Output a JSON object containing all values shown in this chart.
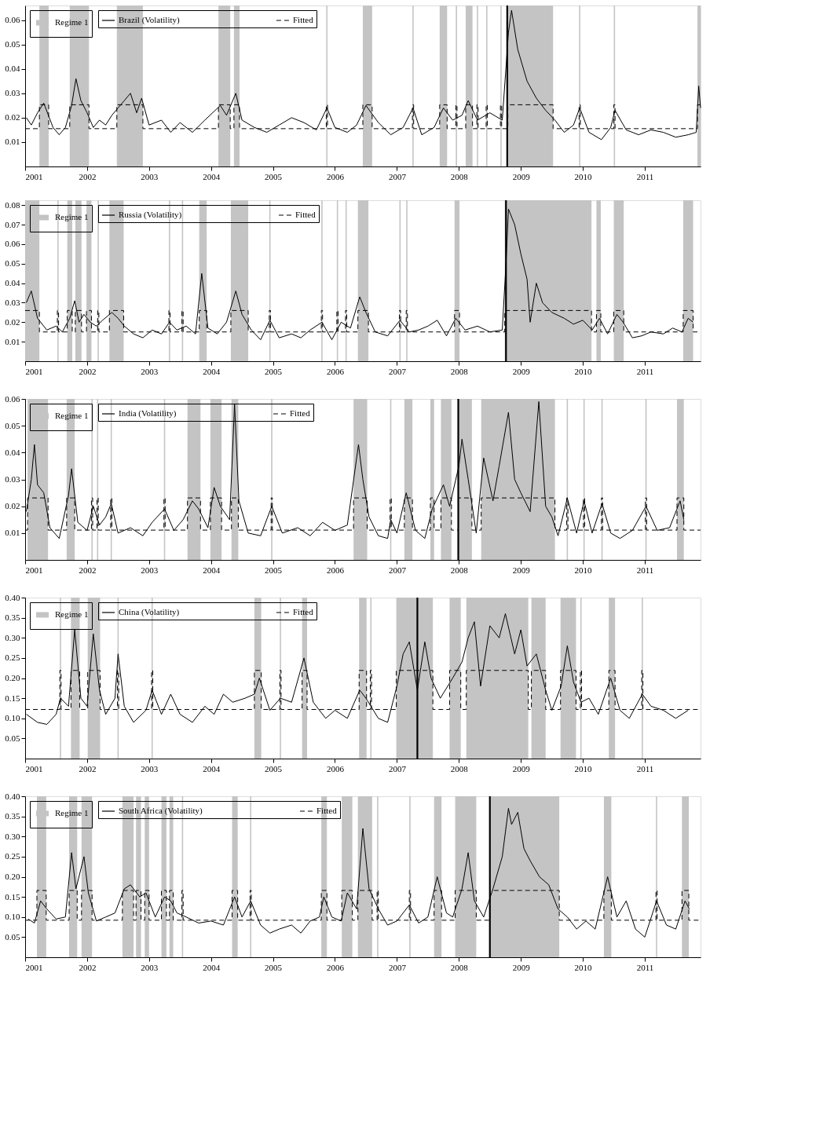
{
  "chart_data": [
    {
      "type": "line",
      "xlim": [
        2001,
        2011.9
      ],
      "xticks": [
        2001,
        2002,
        2003,
        2004,
        2005,
        2006,
        2007,
        2008,
        2009,
        2010,
        2011
      ],
      "ylim": [
        0,
        0.066
      ],
      "yticks": [
        0.01,
        0.02,
        0.03,
        0.04,
        0.05,
        0.06
      ],
      "legend": "top left",
      "series": [
        {
          "name": "Brazil (Volatility)",
          "type": "line",
          "color": "#000000",
          "x": [
            2001.02,
            2001.1,
            2001.2,
            2001.3,
            2001.45,
            2001.55,
            2001.65,
            2001.75,
            2001.82,
            2001.9,
            2002.0,
            2002.1,
            2002.2,
            2002.3,
            2002.4,
            2002.5,
            2002.6,
            2002.7,
            2002.8,
            2002.88,
            2003.0,
            2003.2,
            2003.35,
            2003.5,
            2003.7,
            2003.9,
            2004.15,
            2004.25,
            2004.4,
            2004.5,
            2004.7,
            2004.9,
            2005.1,
            2005.3,
            2005.5,
            2005.7,
            2005.87,
            2006.0,
            2006.2,
            2006.35,
            2006.5,
            2006.7,
            2006.9,
            2007.1,
            2007.26,
            2007.4,
            2007.6,
            2007.75,
            2007.9,
            2008.05,
            2008.15,
            2008.3,
            2008.5,
            2008.7,
            2008.8,
            2008.85,
            2008.95,
            2009.1,
            2009.25,
            2009.4,
            2009.55,
            2009.7,
            2009.85,
            2009.95,
            2010.1,
            2010.3,
            2010.45,
            2010.52,
            2010.7,
            2010.9,
            2011.1,
            2011.3,
            2011.5,
            2011.7,
            2011.83,
            2011.87,
            2011.9
          ],
          "values": [
            0.02,
            0.017,
            0.022,
            0.026,
            0.016,
            0.013,
            0.016,
            0.025,
            0.036,
            0.027,
            0.022,
            0.016,
            0.019,
            0.017,
            0.021,
            0.024,
            0.027,
            0.03,
            0.022,
            0.028,
            0.017,
            0.019,
            0.014,
            0.018,
            0.014,
            0.019,
            0.025,
            0.021,
            0.03,
            0.019,
            0.016,
            0.014,
            0.017,
            0.02,
            0.018,
            0.015,
            0.024,
            0.016,
            0.014,
            0.017,
            0.025,
            0.018,
            0.013,
            0.016,
            0.024,
            0.013,
            0.016,
            0.024,
            0.019,
            0.021,
            0.027,
            0.019,
            0.022,
            0.019,
            0.055,
            0.064,
            0.048,
            0.035,
            0.028,
            0.023,
            0.019,
            0.014,
            0.017,
            0.024,
            0.014,
            0.011,
            0.016,
            0.023,
            0.015,
            0.013,
            0.015,
            0.014,
            0.012,
            0.013,
            0.014,
            0.033,
            0.024
          ]
        },
        {
          "name": "Fitted",
          "type": "step",
          "line_style": "dashed",
          "color": "#000000",
          "x": [
            2001.0,
            2001.23,
            2001.38,
            2001.72,
            2002.03,
            2002.48,
            2002.9,
            2004.12,
            2004.31,
            2004.37,
            2004.46,
            2005.86,
            2005.88,
            2006.45,
            2006.6,
            2007.25,
            2007.27,
            2007.69,
            2007.81,
            2007.95,
            2007.97,
            2008.11,
            2008.22,
            2008.29,
            2008.31,
            2008.44,
            2008.46,
            2008.67,
            2008.69,
            2008.79,
            2009.52,
            2009.94,
            2009.96,
            2010.5,
            2010.52,
            2011.85,
            2011.9
          ],
          "values": [
            0.0155,
            0.0253,
            0.0155,
            0.0253,
            0.0155,
            0.0253,
            0.0155,
            0.0253,
            0.0155,
            0.0253,
            0.0155,
            0.0253,
            0.0155,
            0.0253,
            0.0155,
            0.0253,
            0.0155,
            0.0253,
            0.0155,
            0.0253,
            0.0155,
            0.0253,
            0.0155,
            0.0253,
            0.0155,
            0.0253,
            0.0155,
            0.0253,
            0.0155,
            0.0253,
            0.0155,
            0.0253,
            0.0155,
            0.0253,
            0.0155,
            0.0253,
            0.0253
          ]
        }
      ],
      "ref_lines": [
        {
          "axis": "x",
          "value": 2008.78,
          "color": "#000000"
        }
      ],
      "bands": [
        {
          "axis": "x",
          "from": 2001.23,
          "to": 2001.38,
          "label": "Regime 1",
          "color": "#c4c4c4"
        },
        {
          "axis": "x",
          "from": 2001.72,
          "to": 2002.03
        },
        {
          "axis": "x",
          "from": 2002.48,
          "to": 2002.9
        },
        {
          "axis": "x",
          "from": 2004.12,
          "to": 2004.31
        },
        {
          "axis": "x",
          "from": 2004.37,
          "to": 2004.46
        },
        {
          "axis": "x",
          "from": 2005.86,
          "to": 2005.88
        },
        {
          "axis": "x",
          "from": 2006.45,
          "to": 2006.6
        },
        {
          "axis": "x",
          "from": 2007.25,
          "to": 2007.27
        },
        {
          "axis": "x",
          "from": 2007.69,
          "to": 2007.81
        },
        {
          "axis": "x",
          "from": 2007.95,
          "to": 2007.97
        },
        {
          "axis": "x",
          "from": 2008.11,
          "to": 2008.22
        },
        {
          "axis": "x",
          "from": 2008.29,
          "to": 2008.31
        },
        {
          "axis": "x",
          "from": 2008.44,
          "to": 2008.46
        },
        {
          "axis": "x",
          "from": 2008.67,
          "to": 2008.69
        },
        {
          "axis": "x",
          "from": 2008.79,
          "to": 2009.52
        },
        {
          "axis": "x",
          "from": 2009.94,
          "to": 2009.96
        },
        {
          "axis": "x",
          "from": 2010.5,
          "to": 2010.52
        },
        {
          "axis": "x",
          "from": 2011.85,
          "to": 2011.9
        }
      ]
    },
    {
      "type": "line",
      "xlim": [
        2001,
        2011.9
      ],
      "xticks": [
        2001,
        2002,
        2003,
        2004,
        2005,
        2006,
        2007,
        2008,
        2009,
        2010,
        2011
      ],
      "ylim": [
        0,
        0.0825
      ],
      "yticks": [
        0.01,
        0.02,
        0.03,
        0.04,
        0.05,
        0.06,
        0.07,
        0.08
      ],
      "legend": "top left",
      "series": [
        {
          "name": "Russia (Volatility)",
          "type": "line",
          "color": "#000000",
          "x": [
            2001.02,
            2001.1,
            2001.2,
            2001.35,
            2001.5,
            2001.6,
            2001.72,
            2001.8,
            2001.87,
            2001.95,
            2002.05,
            2002.15,
            2002.25,
            2002.4,
            2002.5,
            2002.6,
            2002.75,
            2002.9,
            2003.05,
            2003.2,
            2003.33,
            2003.45,
            2003.6,
            2003.75,
            2003.85,
            2003.95,
            2004.1,
            2004.25,
            2004.4,
            2004.5,
            2004.65,
            2004.8,
            2004.95,
            2005.1,
            2005.3,
            2005.45,
            2005.6,
            2005.79,
            2005.95,
            2006.1,
            2006.25,
            2006.4,
            2006.5,
            2006.65,
            2006.85,
            2007.05,
            2007.2,
            2007.35,
            2007.5,
            2007.65,
            2007.8,
            2007.95,
            2008.1,
            2008.3,
            2008.5,
            2008.7,
            2008.76,
            2008.8,
            2008.9,
            2009.0,
            2009.1,
            2009.15,
            2009.25,
            2009.35,
            2009.5,
            2009.7,
            2009.85,
            2010.0,
            2010.15,
            2010.27,
            2010.4,
            2010.55,
            2010.65,
            2010.8,
            2010.95,
            2011.1,
            2011.3,
            2011.45,
            2011.6,
            2011.7,
            2011.78
          ],
          "values": [
            0.03,
            0.036,
            0.022,
            0.016,
            0.018,
            0.015,
            0.022,
            0.031,
            0.02,
            0.024,
            0.02,
            0.018,
            0.021,
            0.025,
            0.022,
            0.018,
            0.014,
            0.012,
            0.016,
            0.014,
            0.02,
            0.016,
            0.018,
            0.014,
            0.045,
            0.017,
            0.014,
            0.02,
            0.036,
            0.024,
            0.016,
            0.011,
            0.021,
            0.012,
            0.014,
            0.012,
            0.016,
            0.02,
            0.011,
            0.02,
            0.017,
            0.033,
            0.025,
            0.015,
            0.013,
            0.021,
            0.015,
            0.016,
            0.018,
            0.021,
            0.013,
            0.022,
            0.016,
            0.018,
            0.015,
            0.016,
            0.05,
            0.078,
            0.07,
            0.055,
            0.042,
            0.02,
            0.04,
            0.03,
            0.025,
            0.022,
            0.019,
            0.021,
            0.016,
            0.022,
            0.014,
            0.024,
            0.02,
            0.012,
            0.013,
            0.015,
            0.014,
            0.017,
            0.015,
            0.022,
            0.02
          ]
        },
        {
          "name": "Fitted",
          "type": "step",
          "line_style": "dashed",
          "color": "#000000",
          "x": [
            2001.0,
            2001.23,
            2001.52,
            2001.54,
            2001.68,
            2001.76,
            2001.81,
            2001.91,
            2001.99,
            2002.07,
            2002.17,
            2002.19,
            2002.36,
            2002.59,
            2003.32,
            2003.34,
            2003.53,
            2003.55,
            2003.81,
            2003.93,
            2004.32,
            2004.6,
            2004.94,
            2004.96,
            2005.78,
            2005.8,
            2006.03,
            2006.05,
            2006.17,
            2006.19,
            2006.37,
            2006.54,
            2007.04,
            2007.06,
            2007.15,
            2007.17,
            2007.93,
            2008.01,
            2008.74,
            2010.14,
            2010.22,
            2010.29,
            2010.5,
            2010.66,
            2011.62,
            2011.78,
            2011.9
          ],
          "values": [
            0.026,
            0.015,
            0.026,
            0.015,
            0.026,
            0.015,
            0.026,
            0.015,
            0.026,
            0.015,
            0.026,
            0.015,
            0.026,
            0.015,
            0.026,
            0.015,
            0.026,
            0.015,
            0.026,
            0.015,
            0.026,
            0.015,
            0.026,
            0.015,
            0.026,
            0.015,
            0.026,
            0.015,
            0.026,
            0.015,
            0.026,
            0.015,
            0.026,
            0.015,
            0.026,
            0.015,
            0.026,
            0.015,
            0.026,
            0.015,
            0.026,
            0.015,
            0.026,
            0.015,
            0.026,
            0.015,
            0.015
          ]
        }
      ],
      "ref_lines": [
        {
          "axis": "x",
          "value": 2008.76,
          "color": "#000000"
        }
      ],
      "bands": [
        {
          "axis": "x",
          "from": 2001.0,
          "to": 2001.23,
          "label": "Regime 1",
          "color": "#c4c4c4"
        },
        {
          "axis": "x",
          "from": 2001.52,
          "to": 2001.54
        },
        {
          "axis": "x",
          "from": 2001.68,
          "to": 2001.76
        },
        {
          "axis": "x",
          "from": 2001.81,
          "to": 2001.91
        },
        {
          "axis": "x",
          "from": 2001.99,
          "to": 2002.07
        },
        {
          "axis": "x",
          "from": 2002.17,
          "to": 2002.19
        },
        {
          "axis": "x",
          "from": 2002.36,
          "to": 2002.59
        },
        {
          "axis": "x",
          "from": 2003.32,
          "to": 2003.34
        },
        {
          "axis": "x",
          "from": 2003.53,
          "to": 2003.55
        },
        {
          "axis": "x",
          "from": 2003.81,
          "to": 2003.93
        },
        {
          "axis": "x",
          "from": 2004.32,
          "to": 2004.6
        },
        {
          "axis": "x",
          "from": 2004.94,
          "to": 2004.96
        },
        {
          "axis": "x",
          "from": 2005.78,
          "to": 2005.8
        },
        {
          "axis": "x",
          "from": 2006.03,
          "to": 2006.05
        },
        {
          "axis": "x",
          "from": 2006.17,
          "to": 2006.19
        },
        {
          "axis": "x",
          "from": 2006.37,
          "to": 2006.54
        },
        {
          "axis": "x",
          "from": 2007.04,
          "to": 2007.06
        },
        {
          "axis": "x",
          "from": 2007.15,
          "to": 2007.17
        },
        {
          "axis": "x",
          "from": 2007.93,
          "to": 2008.01
        },
        {
          "axis": "x",
          "from": 2008.74,
          "to": 2010.14
        },
        {
          "axis": "x",
          "from": 2010.22,
          "to": 2010.29
        },
        {
          "axis": "x",
          "from": 2010.5,
          "to": 2010.66
        },
        {
          "axis": "x",
          "from": 2011.62,
          "to": 2011.78
        }
      ]
    },
    {
      "type": "line",
      "xlim": [
        2001,
        2011.9
      ],
      "xticks": [
        2001,
        2002,
        2003,
        2004,
        2005,
        2006,
        2007,
        2008,
        2009,
        2010,
        2011
      ],
      "ylim": [
        0,
        0.06
      ],
      "yticks": [
        0.01,
        0.02,
        0.03,
        0.04,
        0.05,
        0.06
      ],
      "legend": "top left",
      "series": [
        {
          "name": "India (Volatility)",
          "type": "line",
          "color": "#000000",
          "x": [
            2001.02,
            2001.1,
            2001.15,
            2001.2,
            2001.3,
            2001.4,
            2001.55,
            2001.7,
            2001.75,
            2001.85,
            2002.0,
            2002.1,
            2002.2,
            2002.3,
            2002.39,
            2002.5,
            2002.7,
            2002.9,
            2003.05,
            2003.25,
            2003.4,
            2003.55,
            2003.7,
            2003.8,
            2003.95,
            2004.05,
            2004.15,
            2004.3,
            2004.38,
            2004.45,
            2004.6,
            2004.8,
            2004.98,
            2005.15,
            2005.4,
            2005.6,
            2005.8,
            2006.0,
            2006.2,
            2006.38,
            2006.45,
            2006.55,
            2006.7,
            2006.85,
            2006.9,
            2007.0,
            2007.15,
            2007.3,
            2007.45,
            2007.57,
            2007.75,
            2007.85,
            2008.0,
            2008.05,
            2008.15,
            2008.28,
            2008.4,
            2008.55,
            2008.65,
            2008.8,
            2008.9,
            2009.0,
            2009.15,
            2009.29,
            2009.4,
            2009.5,
            2009.6,
            2009.75,
            2009.9,
            2010.02,
            2010.15,
            2010.31,
            2010.45,
            2010.6,
            2010.8,
            2011.02,
            2011.2,
            2011.4,
            2011.57,
            2011.63
          ],
          "values": [
            0.018,
            0.03,
            0.043,
            0.028,
            0.025,
            0.012,
            0.008,
            0.024,
            0.034,
            0.014,
            0.011,
            0.02,
            0.013,
            0.016,
            0.021,
            0.01,
            0.012,
            0.009,
            0.014,
            0.019,
            0.011,
            0.015,
            0.022,
            0.019,
            0.012,
            0.027,
            0.02,
            0.015,
            0.058,
            0.022,
            0.01,
            0.009,
            0.02,
            0.01,
            0.012,
            0.009,
            0.014,
            0.011,
            0.013,
            0.043,
            0.03,
            0.016,
            0.009,
            0.008,
            0.015,
            0.01,
            0.025,
            0.011,
            0.008,
            0.019,
            0.028,
            0.02,
            0.035,
            0.045,
            0.03,
            0.01,
            0.038,
            0.022,
            0.035,
            0.055,
            0.03,
            0.025,
            0.018,
            0.059,
            0.02,
            0.016,
            0.009,
            0.023,
            0.01,
            0.022,
            0.01,
            0.021,
            0.01,
            0.008,
            0.011,
            0.02,
            0.011,
            0.012,
            0.022,
            0.015
          ]
        },
        {
          "name": "Fitted",
          "type": "step",
          "line_style": "dashed",
          "color": "#000000",
          "x": [
            2001.0,
            2001.04,
            2001.37,
            2001.67,
            2001.8,
            2002.07,
            2002.09,
            2002.16,
            2002.18,
            2002.38,
            2002.4,
            2003.24,
            2003.26,
            2003.62,
            2003.83,
            2003.99,
            2004.17,
            2004.33,
            2004.44,
            2004.97,
            2004.99,
            2006.3,
            2006.52,
            2006.89,
            2006.91,
            2007.12,
            2007.25,
            2007.54,
            2007.6,
            2007.71,
            2007.88,
            2007.99,
            2008.21,
            2008.36,
            2009.55,
            2009.74,
            2009.76,
            2010.01,
            2010.03,
            2010.3,
            2010.32,
            2011.01,
            2011.03,
            2011.52,
            2011.63,
            2011.9
          ],
          "values": [
            0.0111,
            0.0231,
            0.0111,
            0.0231,
            0.0111,
            0.0231,
            0.0111,
            0.0231,
            0.0111,
            0.0231,
            0.0111,
            0.0231,
            0.0111,
            0.0231,
            0.0111,
            0.0231,
            0.0111,
            0.0231,
            0.0111,
            0.0231,
            0.0111,
            0.0231,
            0.0111,
            0.0231,
            0.0111,
            0.0231,
            0.0111,
            0.0231,
            0.0111,
            0.0231,
            0.0111,
            0.0231,
            0.0111,
            0.0231,
            0.0111,
            0.0231,
            0.0111,
            0.0231,
            0.0111,
            0.0231,
            0.0111,
            0.0231,
            0.0111,
            0.0231,
            0.0111,
            0.0111
          ]
        }
      ],
      "ref_lines": [
        {
          "axis": "x",
          "value": 2007.99,
          "color": "#000000"
        }
      ],
      "bands": [
        {
          "axis": "x",
          "from": 2001.04,
          "to": 2001.37,
          "label": "Regime 1",
          "color": "#c4c4c4"
        },
        {
          "axis": "x",
          "from": 2001.67,
          "to": 2001.8
        },
        {
          "axis": "x",
          "from": 2002.07,
          "to": 2002.09
        },
        {
          "axis": "x",
          "from": 2002.16,
          "to": 2002.18
        },
        {
          "axis": "x",
          "from": 2002.38,
          "to": 2002.4
        },
        {
          "axis": "x",
          "from": 2003.24,
          "to": 2003.26
        },
        {
          "axis": "x",
          "from": 2003.62,
          "to": 2003.83
        },
        {
          "axis": "x",
          "from": 2003.99,
          "to": 2004.17
        },
        {
          "axis": "x",
          "from": 2004.33,
          "to": 2004.44
        },
        {
          "axis": "x",
          "from": 2004.97,
          "to": 2004.99
        },
        {
          "axis": "x",
          "from": 2006.3,
          "to": 2006.52
        },
        {
          "axis": "x",
          "from": 2006.89,
          "to": 2006.91
        },
        {
          "axis": "x",
          "from": 2007.12,
          "to": 2007.25
        },
        {
          "axis": "x",
          "from": 2007.54,
          "to": 2007.6
        },
        {
          "axis": "x",
          "from": 2007.71,
          "to": 2007.88
        },
        {
          "axis": "x",
          "from": 2007.99,
          "to": 2008.21
        },
        {
          "axis": "x",
          "from": 2008.36,
          "to": 2009.55
        },
        {
          "axis": "x",
          "from": 2009.74,
          "to": 2009.76
        },
        {
          "axis": "x",
          "from": 2010.01,
          "to": 2010.03
        },
        {
          "axis": "x",
          "from": 2010.3,
          "to": 2010.32
        },
        {
          "axis": "x",
          "from": 2011.01,
          "to": 2011.03
        },
        {
          "axis": "x",
          "from": 2011.52,
          "to": 2011.63
        }
      ]
    },
    {
      "type": "line",
      "xlim": [
        2001,
        2011.9
      ],
      "xticks": [
        2001,
        2002,
        2003,
        2004,
        2005,
        2006,
        2007,
        2008,
        2009,
        2010,
        2011
      ],
      "ylim": [
        0,
        0.4
      ],
      "yticks": [
        0.05,
        {
          "value": 0.1,
          "label": "0.10"
        },
        0.15,
        {
          "value": 0.2,
          "label": "0.20"
        },
        0.25,
        {
          "value": 0.3,
          "label": "0.30"
        },
        0.35,
        {
          "value": 0.4,
          "label": "0.40"
        }
      ],
      "legend": "top left",
      "series": [
        {
          "name": "China (Volatility)",
          "type": "line",
          "color": "#000000",
          "x": [
            2001.02,
            2001.2,
            2001.35,
            2001.5,
            2001.57,
            2001.7,
            2001.8,
            2001.9,
            2002.0,
            2002.1,
            2002.2,
            2002.3,
            2002.45,
            2002.5,
            2002.6,
            2002.75,
            2002.95,
            2003.05,
            2003.2,
            2003.35,
            2003.5,
            2003.7,
            2003.9,
            2004.05,
            2004.2,
            2004.35,
            2004.55,
            2004.7,
            2004.78,
            2004.95,
            2005.12,
            2005.3,
            2005.5,
            2005.65,
            2005.85,
            2006.0,
            2006.2,
            2006.4,
            2006.5,
            2006.7,
            2006.85,
            2007.0,
            2007.1,
            2007.2,
            2007.33,
            2007.45,
            2007.55,
            2007.7,
            2007.9,
            2008.05,
            2008.15,
            2008.25,
            2008.35,
            2008.5,
            2008.65,
            2008.75,
            2008.9,
            2009.0,
            2009.1,
            2009.25,
            2009.4,
            2009.5,
            2009.65,
            2009.75,
            2009.85,
            2009.97,
            2010.1,
            2010.25,
            2010.45,
            2010.6,
            2010.75,
            2010.96,
            2011.1,
            2011.3,
            2011.5,
            2011.7
          ],
          "values": [
            0.11,
            0.09,
            0.085,
            0.11,
            0.15,
            0.13,
            0.32,
            0.15,
            0.13,
            0.31,
            0.17,
            0.11,
            0.15,
            0.26,
            0.13,
            0.09,
            0.12,
            0.17,
            0.11,
            0.16,
            0.11,
            0.09,
            0.13,
            0.11,
            0.16,
            0.14,
            0.15,
            0.16,
            0.2,
            0.12,
            0.15,
            0.14,
            0.25,
            0.14,
            0.1,
            0.12,
            0.1,
            0.17,
            0.15,
            0.1,
            0.09,
            0.18,
            0.26,
            0.29,
            0.17,
            0.29,
            0.2,
            0.15,
            0.2,
            0.24,
            0.3,
            0.34,
            0.18,
            0.33,
            0.3,
            0.36,
            0.26,
            0.32,
            0.23,
            0.26,
            0.17,
            0.12,
            0.18,
            0.28,
            0.19,
            0.14,
            0.15,
            0.11,
            0.2,
            0.12,
            0.1,
            0.16,
            0.13,
            0.12,
            0.1,
            0.12
          ]
        },
        {
          "name": "Fitted",
          "type": "step",
          "line_style": "dashed",
          "color": "#000000",
          "x": [
            2001.0,
            2001.56,
            2001.58,
            2001.74,
            2001.88,
            2002.01,
            2002.21,
            2002.49,
            2002.51,
            2003.04,
            2003.06,
            2004.7,
            2004.81,
            2005.11,
            2005.13,
            2005.47,
            2005.55,
            2006.39,
            2006.51,
            2006.57,
            2006.59,
            2006.99,
            2007.58,
            2007.85,
            2008.03,
            2008.12,
            2009.12,
            2009.17,
            2009.4,
            2009.64,
            2009.89,
            2009.96,
            2009.98,
            2010.42,
            2010.52,
            2010.95,
            2010.97,
            2011.9
          ],
          "values": [
            0.122,
            0.219,
            0.122,
            0.219,
            0.122,
            0.219,
            0.122,
            0.219,
            0.122,
            0.219,
            0.122,
            0.219,
            0.122,
            0.219,
            0.122,
            0.219,
            0.122,
            0.219,
            0.122,
            0.219,
            0.122,
            0.219,
            0.122,
            0.219,
            0.122,
            0.219,
            0.122,
            0.219,
            0.122,
            0.219,
            0.122,
            0.219,
            0.122,
            0.219,
            0.122,
            0.219,
            0.122,
            0.122
          ]
        }
      ],
      "ref_lines": [
        {
          "axis": "x",
          "value": 2007.33,
          "color": "#000000"
        }
      ],
      "bands": [
        {
          "axis": "x",
          "from": 2001.56,
          "to": 2001.58,
          "label": "Regime 1",
          "color": "#c4c4c4"
        },
        {
          "axis": "x",
          "from": 2001.74,
          "to": 2001.88
        },
        {
          "axis": "x",
          "from": 2002.01,
          "to": 2002.21
        },
        {
          "axis": "x",
          "from": 2002.49,
          "to": 2002.51
        },
        {
          "axis": "x",
          "from": 2003.04,
          "to": 2003.06
        },
        {
          "axis": "x",
          "from": 2004.7,
          "to": 2004.81
        },
        {
          "axis": "x",
          "from": 2005.11,
          "to": 2005.13
        },
        {
          "axis": "x",
          "from": 2005.47,
          "to": 2005.55
        },
        {
          "axis": "x",
          "from": 2006.39,
          "to": 2006.51
        },
        {
          "axis": "x",
          "from": 2006.57,
          "to": 2006.59
        },
        {
          "axis": "x",
          "from": 2006.99,
          "to": 2007.58
        },
        {
          "axis": "x",
          "from": 2007.85,
          "to": 2008.03
        },
        {
          "axis": "x",
          "from": 2008.12,
          "to": 2009.12
        },
        {
          "axis": "x",
          "from": 2009.17,
          "to": 2009.4
        },
        {
          "axis": "x",
          "from": 2009.64,
          "to": 2009.89
        },
        {
          "axis": "x",
          "from": 2009.96,
          "to": 2009.98
        },
        {
          "axis": "x",
          "from": 2010.42,
          "to": 2010.52
        },
        {
          "axis": "x",
          "from": 2010.95,
          "to": 2010.97
        }
      ]
    },
    {
      "type": "line",
      "xlim": [
        2001,
        2011.9
      ],
      "xticks": [
        2001,
        2002,
        2003,
        2004,
        2005,
        2006,
        2007,
        2008,
        2009,
        2010,
        2011
      ],
      "ylim": [
        0,
        0.4
      ],
      "yticks": [
        0.05,
        {
          "value": 0.1,
          "label": "0.10"
        },
        0.15,
        {
          "value": 0.2,
          "label": "0.20"
        },
        0.25,
        {
          "value": 0.3,
          "label": "0.30"
        },
        0.35,
        {
          "value": 0.4,
          "label": "0.40"
        }
      ],
      "legend": "top left",
      "series": [
        {
          "name": "South Africa (Volatility)",
          "type": "line",
          "color": "#000000",
          "x": [
            2001.05,
            2001.15,
            2001.25,
            2001.35,
            2001.5,
            2001.65,
            2001.75,
            2001.82,
            2001.95,
            2002.02,
            2002.15,
            2002.3,
            2002.45,
            2002.6,
            2002.7,
            2002.85,
            2002.95,
            2003.1,
            2003.25,
            2003.35,
            2003.45,
            2003.6,
            2003.8,
            2004.0,
            2004.2,
            2004.38,
            2004.5,
            2004.64,
            2004.8,
            2004.95,
            2005.1,
            2005.3,
            2005.45,
            2005.6,
            2005.75,
            2005.82,
            2005.95,
            2006.1,
            2006.2,
            2006.35,
            2006.45,
            2006.55,
            2006.7,
            2006.85,
            2007.0,
            2007.2,
            2007.35,
            2007.5,
            2007.65,
            2007.8,
            2007.9,
            2008.05,
            2008.15,
            2008.25,
            2008.4,
            2008.55,
            2008.7,
            2008.8,
            2008.85,
            2008.95,
            2009.05,
            2009.15,
            2009.3,
            2009.45,
            2009.6,
            2009.75,
            2009.9,
            2010.05,
            2010.2,
            2010.4,
            2010.55,
            2010.7,
            2010.85,
            2011.0,
            2011.19,
            2011.35,
            2011.5,
            2011.65,
            2011.72
          ],
          "values": [
            0.095,
            0.085,
            0.14,
            0.12,
            0.095,
            0.1,
            0.26,
            0.17,
            0.25,
            0.16,
            0.09,
            0.1,
            0.11,
            0.17,
            0.18,
            0.15,
            0.16,
            0.1,
            0.15,
            0.14,
            0.11,
            0.1,
            0.085,
            0.09,
            0.08,
            0.15,
            0.1,
            0.14,
            0.08,
            0.06,
            0.07,
            0.08,
            0.06,
            0.09,
            0.1,
            0.15,
            0.1,
            0.09,
            0.16,
            0.12,
            0.32,
            0.17,
            0.12,
            0.08,
            0.09,
            0.13,
            0.085,
            0.1,
            0.2,
            0.11,
            0.1,
            0.17,
            0.26,
            0.14,
            0.1,
            0.17,
            0.25,
            0.37,
            0.33,
            0.36,
            0.27,
            0.24,
            0.2,
            0.18,
            0.12,
            0.1,
            0.07,
            0.09,
            0.07,
            0.2,
            0.1,
            0.14,
            0.07,
            0.05,
            0.14,
            0.08,
            0.07,
            0.14,
            0.12
          ]
        },
        {
          "name": "Fitted",
          "type": "step",
          "line_style": "dashed",
          "color": "#000000",
          "x": [
            2001.0,
            2001.19,
            2001.34,
            2001.71,
            2001.84,
            2001.91,
            2002.08,
            2002.57,
            2002.75,
            2002.79,
            2002.87,
            2002.93,
            2003.0,
            2003.2,
            2003.28,
            2003.33,
            2003.39,
            2003.53,
            2003.55,
            2004.34,
            2004.43,
            2004.63,
            2004.65,
            2005.78,
            2005.87,
            2006.11,
            2006.28,
            2006.37,
            2006.6,
            2006.68,
            2006.7,
            2007.2,
            2007.22,
            2007.6,
            2007.72,
            2007.94,
            2008.28,
            2008.5,
            2009.62,
            2010.34,
            2010.46,
            2011.18,
            2011.2,
            2011.6,
            2011.71,
            2011.9
          ],
          "values": [
            0.092,
            0.166,
            0.092,
            0.166,
            0.092,
            0.166,
            0.092,
            0.166,
            0.092,
            0.166,
            0.092,
            0.166,
            0.092,
            0.166,
            0.092,
            0.166,
            0.092,
            0.166,
            0.092,
            0.166,
            0.092,
            0.166,
            0.092,
            0.166,
            0.092,
            0.166,
            0.092,
            0.166,
            0.092,
            0.166,
            0.092,
            0.166,
            0.092,
            0.166,
            0.092,
            0.166,
            0.092,
            0.166,
            0.092,
            0.166,
            0.092,
            0.166,
            0.092,
            0.166,
            0.092,
            0.092
          ]
        }
      ],
      "ref_lines": [
        {
          "axis": "x",
          "value": 2008.5,
          "color": "#000000"
        }
      ],
      "bands": [
        {
          "axis": "x",
          "from": 2001.19,
          "to": 2001.34,
          "label": "Regime 1",
          "color": "#c4c4c4"
        },
        {
          "axis": "x",
          "from": 2001.71,
          "to": 2001.84
        },
        {
          "axis": "x",
          "from": 2001.91,
          "to": 2002.08
        },
        {
          "axis": "x",
          "from": 2002.57,
          "to": 2002.75
        },
        {
          "axis": "x",
          "from": 2002.79,
          "to": 2002.87
        },
        {
          "axis": "x",
          "from": 2002.93,
          "to": 2003.0
        },
        {
          "axis": "x",
          "from": 2003.2,
          "to": 2003.28
        },
        {
          "axis": "x",
          "from": 2003.33,
          "to": 2003.39
        },
        {
          "axis": "x",
          "from": 2003.53,
          "to": 2003.55
        },
        {
          "axis": "x",
          "from": 2004.34,
          "to": 2004.43
        },
        {
          "axis": "x",
          "from": 2004.63,
          "to": 2004.65
        },
        {
          "axis": "x",
          "from": 2005.78,
          "to": 2005.87
        },
        {
          "axis": "x",
          "from": 2006.11,
          "to": 2006.28
        },
        {
          "axis": "x",
          "from": 2006.37,
          "to": 2006.6
        },
        {
          "axis": "x",
          "from": 2006.68,
          "to": 2006.7
        },
        {
          "axis": "x",
          "from": 2007.2,
          "to": 2007.22
        },
        {
          "axis": "x",
          "from": 2007.6,
          "to": 2007.72
        },
        {
          "axis": "x",
          "from": 2007.94,
          "to": 2008.28
        },
        {
          "axis": "x",
          "from": 2008.5,
          "to": 2009.62
        },
        {
          "axis": "x",
          "from": 2010.34,
          "to": 2010.46
        },
        {
          "axis": "x",
          "from": 2011.18,
          "to": 2011.2
        },
        {
          "axis": "x",
          "from": 2011.6,
          "to": 2011.71
        }
      ]
    }
  ]
}
